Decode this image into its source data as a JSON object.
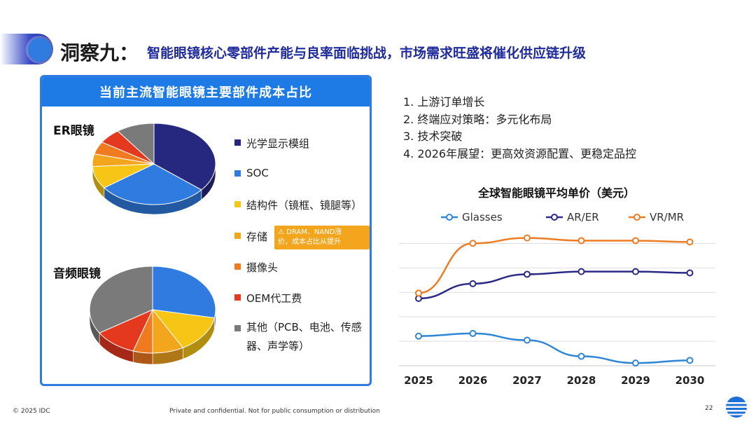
{
  "header": {
    "main_title": "洞察九：",
    "subtitle": "智能眼镜核心零部件产能与良率面临挑战，市场需求旺盛将催化供应链升级"
  },
  "panel": {
    "title": "当前主流智能眼镜主要部件成本占比",
    "er_label": "ER眼镜",
    "audio_label": "音频眼镜",
    "legend": [
      {
        "label": "光学显示模组",
        "color": "#25287e"
      },
      {
        "label": "SOC",
        "color": "#2f7be0"
      },
      {
        "label": "结构件（镜框、镜腿等）",
        "color": "#f7c516"
      },
      {
        "label": "存储",
        "color": "#f3a51d"
      },
      {
        "label": "摄像头",
        "color": "#f07a20"
      },
      {
        "label": "OEM代工费",
        "color": "#e5391f"
      },
      {
        "label": "其他（PCB、电池、传感器、声学等）",
        "label_line1": "其他（PCB、电池、传感",
        "label_line2": "器、声学等）",
        "color": "#7a7a7a"
      }
    ],
    "note_line1": "⚠ DRAM、NAND涨",
    "note_line2": "价，成本占比从提升",
    "pies": [
      {
        "name": "ER眼镜",
        "slices": [
          {
            "label": "光学显示模组",
            "value": 36,
            "color": "#25287e"
          },
          {
            "label": "SOC",
            "value": 29,
            "color": "#2f7be0"
          },
          {
            "label": "结构件（镜框、镜腿等）",
            "value": 9,
            "color": "#f7c516"
          },
          {
            "label": "存储",
            "value": 5,
            "color": "#f3a51d"
          },
          {
            "label": "摄像头",
            "value": 5,
            "color": "#f07a20"
          },
          {
            "label": "OEM代工费",
            "value": 6,
            "color": "#e5391f"
          },
          {
            "label": "其他（PCB、电池、传感器、声学等）",
            "value": 10,
            "color": "#7a7a7a"
          }
        ]
      },
      {
        "name": "音频眼镜",
        "slices": [
          {
            "label": "SOC",
            "value": 28,
            "color": "#2f7be0"
          },
          {
            "label": "结构件（镜框、镜腿等）",
            "value": 14,
            "color": "#f7c516"
          },
          {
            "label": "存储",
            "value": 8,
            "color": "#f3a51d"
          },
          {
            "label": "摄像头",
            "value": 5,
            "color": "#f07a20"
          },
          {
            "label": "OEM代工费",
            "value": 11,
            "color": "#e5391f"
          },
          {
            "label": "其他（PCB、电池、传感器、声学等）",
            "value": 34,
            "color": "#7a7a7a"
          }
        ]
      }
    ]
  },
  "points": [
    "1. 上游订单增长",
    "2. 终端应对策略：多元化布局",
    "3. 技术突破",
    "4. 2026年展望：更高效资源配置、更稳定品控"
  ],
  "chart_data": {
    "type": "line",
    "title": "全球智能眼镜平均单价（美元）",
    "x": [
      "2025",
      "2026",
      "2027",
      "2028",
      "2029",
      "2030"
    ],
    "ylim": [
      0,
      100
    ],
    "grid": true,
    "legend_position": "top",
    "series": [
      {
        "name": "Glasses",
        "color": "#2f86d6",
        "values": [
          22,
          24,
          19,
          7,
          2,
          4
        ]
      },
      {
        "name": "AR/ER",
        "color": "#2b2a86",
        "values": [
          50,
          61,
          68,
          70,
          70,
          69
        ]
      },
      {
        "name": "VR/MR",
        "color": "#ee7c24",
        "values": [
          54,
          91,
          95,
          93,
          93,
          92
        ]
      }
    ]
  },
  "footer": {
    "copyright": "© 2025 IDC",
    "confidential": "Private and confidential. Not for public consumption or distribution",
    "page": "22"
  }
}
